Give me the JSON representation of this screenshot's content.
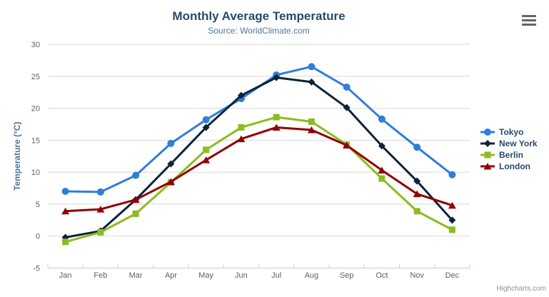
{
  "chart_data": {
    "type": "line",
    "title": "Monthly Average Temperature",
    "subtitle": "Source: WorldClimate.com",
    "categories": [
      "Jan",
      "Feb",
      "Mar",
      "Apr",
      "May",
      "Jun",
      "Jul",
      "Aug",
      "Sep",
      "Oct",
      "Nov",
      "Dec"
    ],
    "series": [
      {
        "name": "Tokyo",
        "color": "#2f7ed8",
        "marker": "circle",
        "values": [
          7.0,
          6.9,
          9.5,
          14.5,
          18.2,
          21.5,
          25.2,
          26.5,
          23.3,
          18.3,
          13.9,
          9.6
        ]
      },
      {
        "name": "New York",
        "color": "#0d233a",
        "marker": "diamond",
        "values": [
          -0.2,
          0.8,
          5.7,
          11.3,
          17.0,
          22.0,
          24.8,
          24.1,
          20.1,
          14.1,
          8.6,
          2.5
        ]
      },
      {
        "name": "Berlin",
        "color": "#8bbc21",
        "marker": "square",
        "values": [
          -0.9,
          0.6,
          3.5,
          8.4,
          13.5,
          17.0,
          18.6,
          17.9,
          14.3,
          9.0,
          3.9,
          1.0
        ]
      },
      {
        "name": "London",
        "color": "#910000",
        "marker": "triangle",
        "values": [
          3.9,
          4.2,
          5.7,
          8.5,
          11.9,
          15.2,
          17.0,
          16.6,
          14.2,
          10.3,
          6.6,
          4.8
        ]
      }
    ],
    "xlabel": "",
    "ylabel": "Temperature (°C)",
    "ylim": [
      -5,
      30
    ],
    "ytick_step": 5,
    "grid": true,
    "legend_position": "right"
  },
  "credits": {
    "label": "Highcharts.com"
  },
  "icons": {
    "context_menu": "hamburger-icon"
  },
  "colors": {
    "background": "#ffffff",
    "title": "#274b6d",
    "subtitle": "#4d759e",
    "axis_title": "#4d759e",
    "axis_labels": "#606060",
    "gridline": "#d8d8d8",
    "axis_line": "#c0d0e0",
    "credits": "#909090",
    "menu_icon": "#666666"
  }
}
